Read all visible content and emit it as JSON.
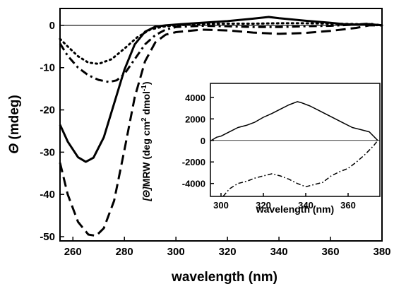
{
  "chart_data": [
    {
      "type": "line",
      "xlabel": "wavelength (nm)",
      "ylabel_symbol": "Θ",
      "ylabel_unit": " (mdeg)",
      "xlim": [
        255,
        380
      ],
      "ylim": [
        -51,
        4
      ],
      "xticks": [
        260,
        280,
        300,
        320,
        340,
        360,
        380
      ],
      "yticks": [
        0,
        -10,
        -20,
        -30,
        -40,
        -50
      ],
      "grid": false,
      "legend": "none",
      "series": [
        {
          "style": "solid",
          "x": [
            255,
            258,
            262,
            265,
            268,
            272,
            276,
            280,
            284,
            288,
            292,
            296,
            300,
            310,
            320,
            330,
            336,
            340,
            350,
            360,
            365,
            370,
            375,
            380
          ],
          "y": [
            -23.5,
            -27.5,
            -31.2,
            -32.3,
            -31.3,
            -26.5,
            -18.5,
            -10.5,
            -4.5,
            -1.5,
            -0.3,
            0,
            0.2,
            0.6,
            1,
            1.6,
            2,
            1.7,
            1.1,
            0.6,
            0.3,
            0.2,
            0.3,
            0
          ]
        },
        {
          "style": "dashed",
          "x": [
            255,
            258,
            262,
            266,
            269,
            272,
            276,
            280,
            284,
            288,
            292,
            296,
            300,
            310,
            320,
            330,
            340,
            350,
            360,
            370,
            375,
            380
          ],
          "y": [
            -32.5,
            -40,
            -46.5,
            -49.5,
            -49.8,
            -48,
            -41.5,
            -29.5,
            -17,
            -8.5,
            -4,
            -2.2,
            -1.6,
            -1,
            -1.2,
            -1.7,
            -2,
            -1.8,
            -1.3,
            -0.6,
            0,
            0
          ]
        },
        {
          "style": "dotted",
          "x": [
            255,
            258,
            262,
            266,
            270,
            275,
            280,
            285,
            290,
            295,
            300,
            310,
            320,
            330,
            340,
            350,
            360,
            370,
            380
          ],
          "y": [
            -3.2,
            -5,
            -7.3,
            -8.8,
            -9.1,
            -8,
            -5.5,
            -2.8,
            -1,
            -0.3,
            0,
            0.3,
            0.4,
            0.4,
            0.5,
            0.5,
            0.4,
            0.3,
            0
          ]
        },
        {
          "style": "dash-dot",
          "x": [
            255,
            258,
            262,
            266,
            270,
            274,
            277,
            280,
            284,
            288,
            292,
            296,
            300,
            310,
            320,
            330,
            340,
            350,
            360,
            370,
            375,
            380
          ],
          "y": [
            -4.3,
            -7.2,
            -10,
            -11.8,
            -12.9,
            -13.4,
            -13,
            -11.5,
            -8,
            -4.5,
            -2.3,
            -1,
            -0.4,
            -0.1,
            -0.2,
            -0.4,
            -0.4,
            -0.2,
            -0.1,
            0.2,
            0.4,
            0
          ]
        }
      ]
    },
    {
      "type": "line",
      "xlabel": "wavelength (nm)",
      "ylabel_symbol": "[Θ]",
      "ylabel_unit": "MRW (deg cm",
      "ylabel_sup1": "2",
      "ylabel_mid": " dmol",
      "ylabel_sup2": "-1",
      "ylabel_end": ")",
      "xlim": [
        295,
        375
      ],
      "ylim": [
        -5200,
        5300
      ],
      "xticks": [
        300,
        320,
        340,
        360
      ],
      "yticks": [
        4000,
        2000,
        0,
        -2000,
        -4000
      ],
      "grid": false,
      "legend": "none",
      "series": [
        {
          "style": "solid",
          "x": [
            295,
            298,
            300,
            304,
            308,
            312,
            316,
            320,
            324,
            328,
            332,
            336,
            338,
            342,
            346,
            350,
            354,
            358,
            362,
            366,
            370,
            374
          ],
          "y": [
            -50,
            300,
            400,
            800,
            1200,
            1400,
            1700,
            2150,
            2500,
            2900,
            3300,
            3600,
            3500,
            3200,
            2800,
            2400,
            2000,
            1600,
            1200,
            1000,
            800,
            0
          ]
        },
        {
          "style": "dash-dot",
          "x": [
            301,
            304,
            308,
            312,
            316,
            320,
            324,
            328,
            332,
            336,
            340,
            344,
            348,
            352,
            356,
            360,
            364,
            368,
            372,
            374
          ],
          "y": [
            -5200,
            -4500,
            -4000,
            -3800,
            -3500,
            -3300,
            -3100,
            -3300,
            -3600,
            -4000,
            -4300,
            -4100,
            -3900,
            -3300,
            -2900,
            -2600,
            -2000,
            -1300,
            -500,
            0
          ]
        }
      ]
    }
  ]
}
